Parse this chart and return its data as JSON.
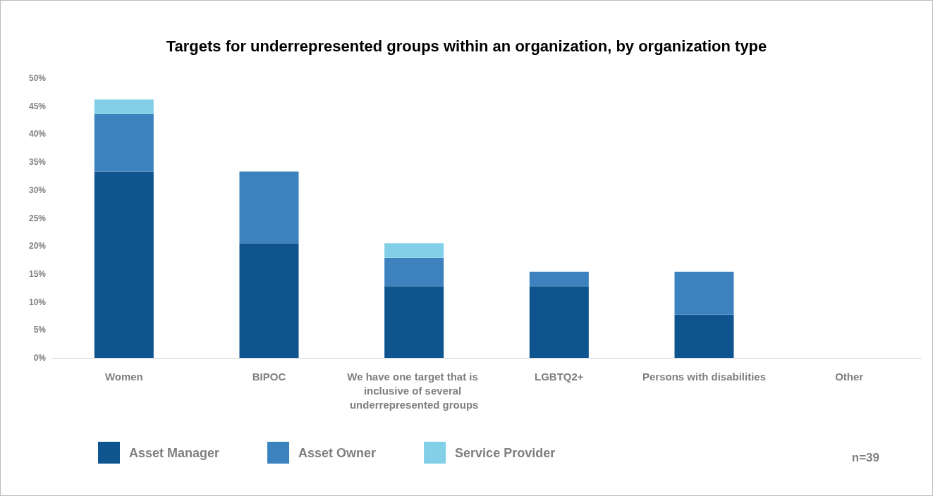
{
  "chart_data": {
    "type": "bar",
    "title": "Targets for underrepresented groups within an organization, by organization type",
    "categories": [
      "Women",
      "BIPOC",
      "We have one target that is inclusive of several underrepresented groups",
      "LGBTQ2+",
      "Persons with disabilities",
      "Other"
    ],
    "stacked": true,
    "series": [
      {
        "name": "Asset Manager",
        "color": "#0e548f",
        "values": [
          33.3,
          20.5,
          12.8,
          12.8,
          7.7,
          0
        ]
      },
      {
        "name": "Asset Owner",
        "color": "#3b82bf",
        "values": [
          10.3,
          12.8,
          5.1,
          2.6,
          7.7,
          0
        ]
      },
      {
        "name": "Service Provider",
        "color": "#82d0e8",
        "values": [
          2.6,
          0,
          2.6,
          0,
          0,
          0
        ]
      }
    ],
    "ylim": [
      0,
      50
    ],
    "yticks": [
      {
        "value": 0,
        "label": "0%"
      },
      {
        "value": 5,
        "label": "5%"
      },
      {
        "value": 10,
        "label": "10%"
      },
      {
        "value": 15,
        "label": "15%"
      },
      {
        "value": 20,
        "label": "20%"
      },
      {
        "value": 25,
        "label": "25%"
      },
      {
        "value": 30,
        "label": "30%"
      },
      {
        "value": 35,
        "label": "35%"
      },
      {
        "value": 40,
        "label": "40%"
      },
      {
        "value": 45,
        "label": "45%"
      },
      {
        "value": 50,
        "label": "50%"
      }
    ],
    "grid": false,
    "legend": "bottom",
    "annotations": [
      "n=39"
    ]
  }
}
